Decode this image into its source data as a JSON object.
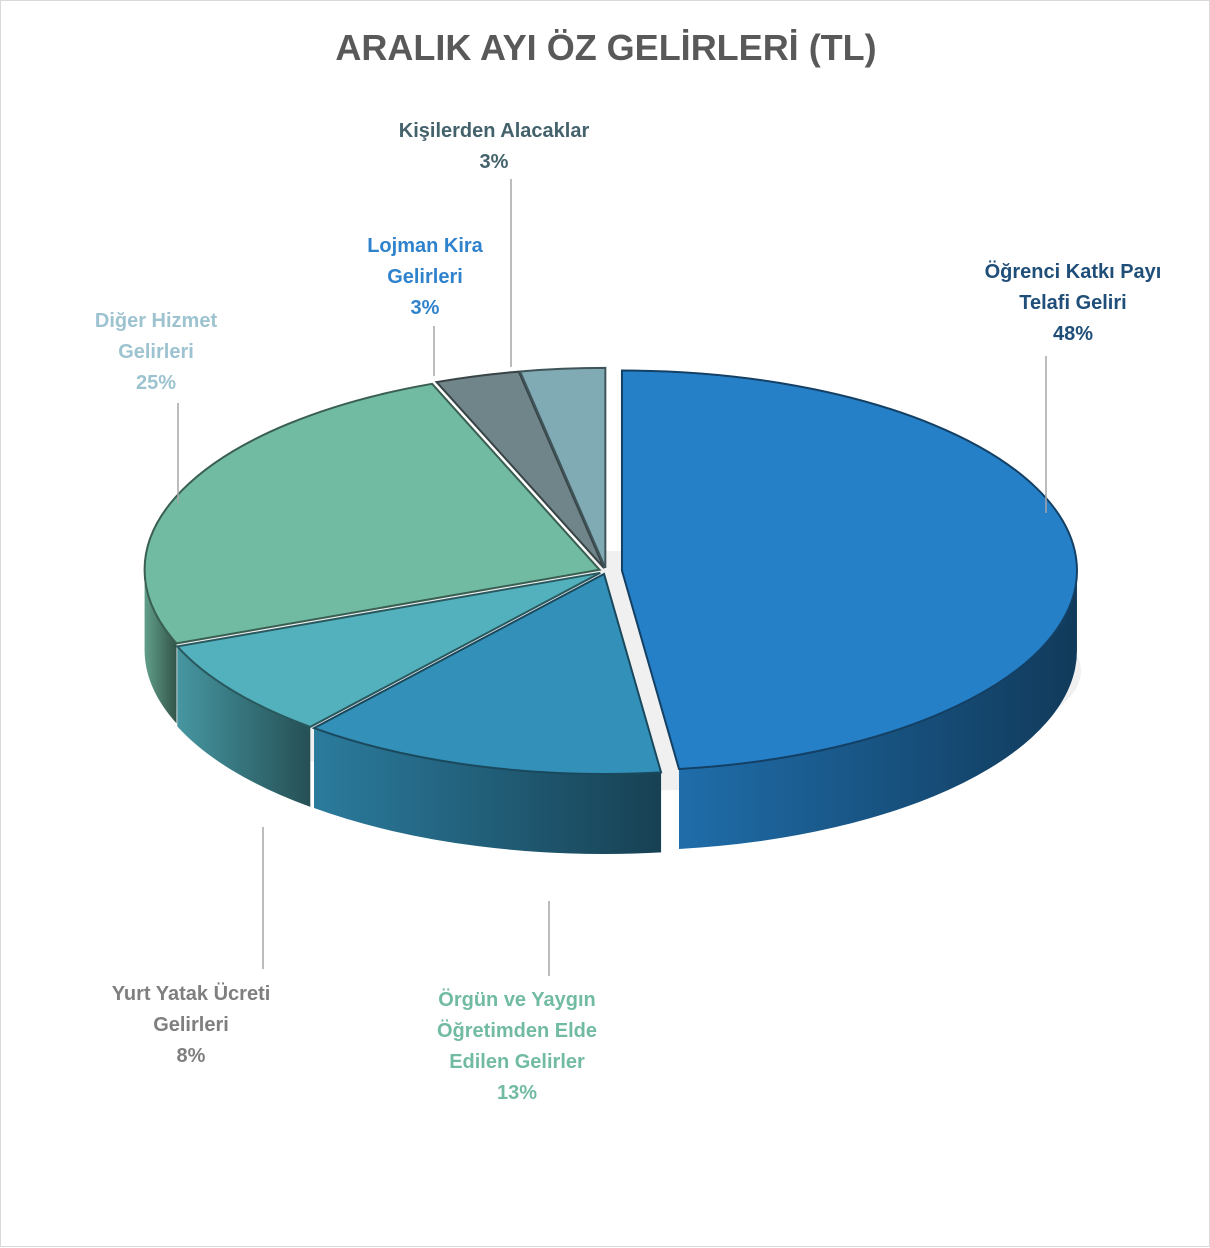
{
  "chart_data": {
    "type": "pie3d",
    "title": "ARALIK AYI ÖZ GELİRLERİ (TL)",
    "categories": [
      "Öğrenci Katkı Payı Telafi Geliri",
      "Örgün ve Yaygın Öğretimden Elde Edilen Gelirler",
      "Yurt Yatak Ücreti Gelirleri",
      "Diğer Hizmet Gelirleri",
      "Lojman Kira Gelirleri",
      "Kişilerden Alacaklar"
    ],
    "values": [
      48,
      13,
      8,
      25,
      3,
      3
    ],
    "value_labels": [
      "48%",
      "13%",
      "8%",
      "25%",
      "3%",
      "3%"
    ],
    "colors": [
      "#2580c8",
      "#3391b9",
      "#52b1bd",
      "#72bba3",
      "#6f8589",
      "#80aab4"
    ],
    "label_colors": [
      "#1f4e79",
      "#72bba3",
      "#7f7f7f",
      "#9dc3d0",
      "#2f83cc",
      "#44626b"
    ]
  }
}
